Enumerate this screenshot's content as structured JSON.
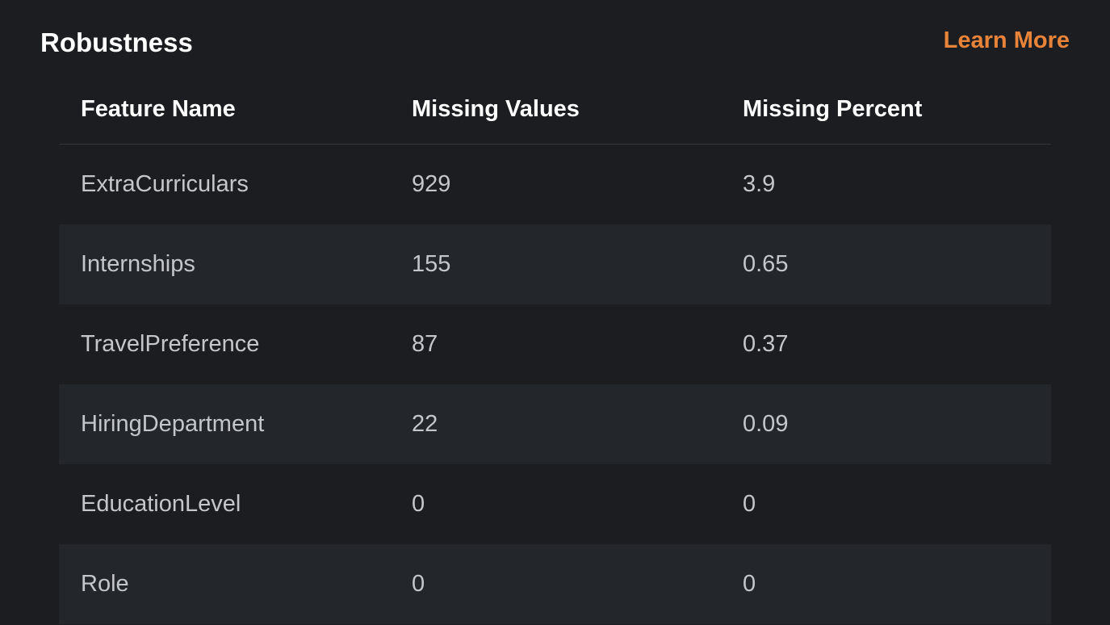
{
  "panel": {
    "title": "Robustness",
    "learn_more": "Learn More"
  },
  "colors": {
    "background": "#1b1d20",
    "row_stripe": "#23262a",
    "accent": "#e8833a"
  },
  "table": {
    "columns": [
      "Feature Name",
      "Missing Values",
      "Missing Percent"
    ],
    "rows": [
      {
        "feature": "ExtraCurriculars",
        "missing_values": "929",
        "missing_percent": "3.9"
      },
      {
        "feature": "Internships",
        "missing_values": "155",
        "missing_percent": "0.65"
      },
      {
        "feature": "TravelPreference",
        "missing_values": "87",
        "missing_percent": "0.37"
      },
      {
        "feature": "HiringDepartment",
        "missing_values": "22",
        "missing_percent": "0.09"
      },
      {
        "feature": "EducationLevel",
        "missing_values": "0",
        "missing_percent": "0"
      },
      {
        "feature": "Role",
        "missing_values": "0",
        "missing_percent": "0"
      }
    ]
  }
}
